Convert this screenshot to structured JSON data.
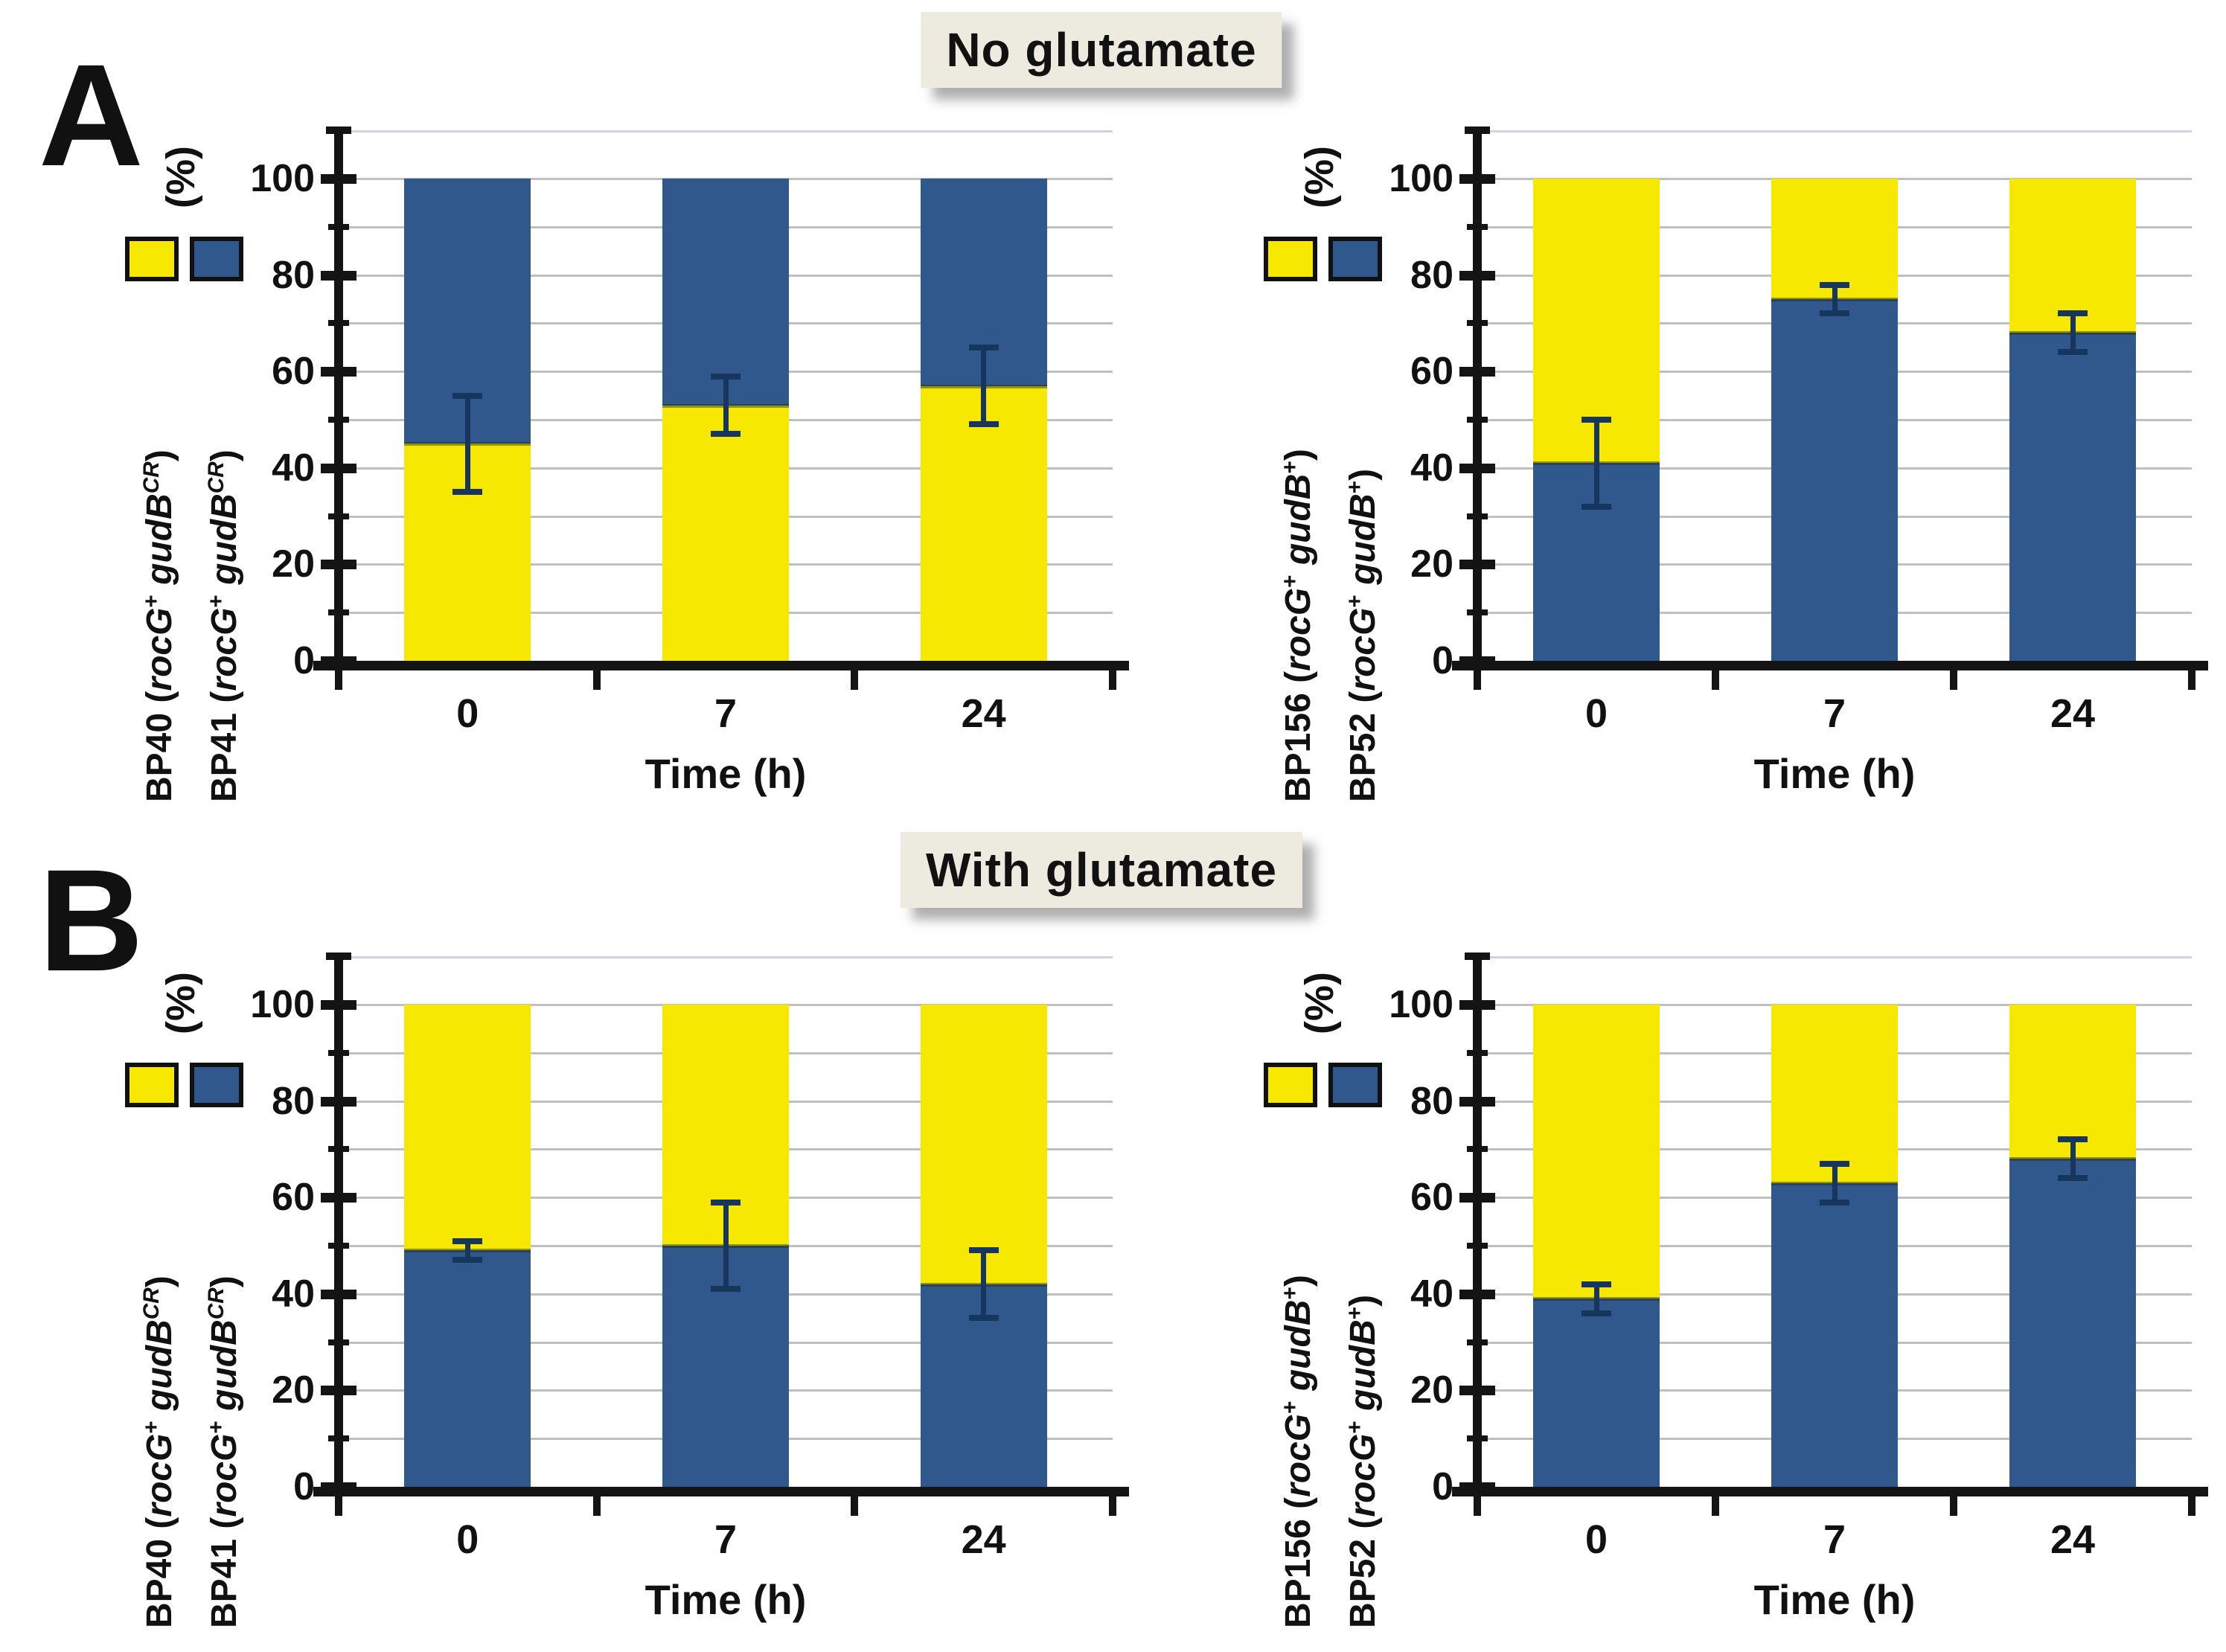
{
  "figure": {
    "panels": [
      {
        "letter": "A",
        "title": "No glutamate"
      },
      {
        "letter": "B",
        "title": "With glutamate"
      }
    ]
  },
  "style": {
    "yellow": "#F6E800",
    "blue": "#31588C",
    "error_bar": "#17365D",
    "grid": "#C0C0C0",
    "axis": "#141414",
    "title_bg": "#EDEBE0",
    "plot_top_border": "#CBD6E2"
  },
  "chart_data": [
    {
      "type": "bar",
      "stacked": true,
      "panel": "A",
      "side": "left",
      "panel_title": "No glutamate",
      "categories": [
        "0",
        "7",
        "24"
      ],
      "xlabel": "Time (h)",
      "ylabel": "(%)",
      "ylim": [
        0,
        100
      ],
      "yticks": [
        0,
        20,
        40,
        60,
        80,
        100
      ],
      "grid_step": 10,
      "series": [
        {
          "name": "BP40 (rocG+ gudBCR)",
          "color": "yellow",
          "stack": "bottom",
          "values": [
            45,
            53,
            57
          ]
        },
        {
          "name": "BP41 (rocG+ gudBCR)",
          "color": "blue",
          "stack": "top",
          "values": [
            55,
            47,
            43
          ]
        }
      ],
      "error_bars": {
        "at": "stack-boundary",
        "center": [
          45,
          53,
          57
        ],
        "plus_minus": [
          10,
          6,
          8
        ]
      },
      "legend": [
        {
          "color": "yellow",
          "parts": [
            {
              "t": "BP40 ("
            },
            {
              "t": "rocG",
              "s": "i"
            },
            {
              "t": "+",
              "s": "sup"
            },
            {
              "t": " "
            },
            {
              "t": "gudB",
              "s": "i"
            },
            {
              "t": "CR",
              "s": "isup"
            },
            {
              "t": ")"
            }
          ]
        },
        {
          "color": "blue",
          "parts": [
            {
              "t": "BP41 ("
            },
            {
              "t": "rocG",
              "s": "i"
            },
            {
              "t": "+",
              "s": "sup"
            },
            {
              "t": " "
            },
            {
              "t": "gudB",
              "s": "i"
            },
            {
              "t": "CR",
              "s": "isup"
            },
            {
              "t": ")"
            }
          ]
        }
      ]
    },
    {
      "type": "bar",
      "stacked": true,
      "panel": "A",
      "side": "right",
      "panel_title": "No glutamate",
      "categories": [
        "0",
        "7",
        "24"
      ],
      "xlabel": "Time (h)",
      "ylabel": "(%)",
      "ylim": [
        0,
        100
      ],
      "yticks": [
        0,
        20,
        40,
        60,
        80,
        100
      ],
      "grid_step": 10,
      "series": [
        {
          "name": "BP52 (rocG+ gudB+)",
          "color": "blue",
          "stack": "bottom",
          "values": [
            41,
            75,
            68
          ]
        },
        {
          "name": "BP156 (rocG+ gudB+)",
          "color": "yellow",
          "stack": "top",
          "values": [
            59,
            25,
            32
          ]
        }
      ],
      "error_bars": {
        "at": "stack-boundary",
        "center": [
          41,
          75,
          68
        ],
        "plus_minus": [
          9,
          3,
          4
        ]
      },
      "legend": [
        {
          "color": "yellow",
          "parts": [
            {
              "t": "BP156 ("
            },
            {
              "t": "rocG",
              "s": "i"
            },
            {
              "t": "+",
              "s": "sup"
            },
            {
              "t": " "
            },
            {
              "t": "gudB",
              "s": "i"
            },
            {
              "t": "+",
              "s": "sup"
            },
            {
              "t": ")"
            }
          ]
        },
        {
          "color": "blue",
          "parts": [
            {
              "t": "BP52 ("
            },
            {
              "t": "rocG",
              "s": "i"
            },
            {
              "t": "+",
              "s": "sup"
            },
            {
              "t": " "
            },
            {
              "t": "gudB",
              "s": "i"
            },
            {
              "t": "+",
              "s": "sup"
            },
            {
              "t": ")"
            }
          ]
        }
      ]
    },
    {
      "type": "bar",
      "stacked": true,
      "panel": "B",
      "side": "left",
      "panel_title": "With glutamate",
      "categories": [
        "0",
        "7",
        "24"
      ],
      "xlabel": "Time (h)",
      "ylabel": "(%)",
      "ylim": [
        0,
        100
      ],
      "yticks": [
        0,
        20,
        40,
        60,
        80,
        100
      ],
      "grid_step": 10,
      "series": [
        {
          "name": "BP41 (rocG+ gudBCR)",
          "color": "blue",
          "stack": "bottom",
          "values": [
            49,
            50,
            42
          ]
        },
        {
          "name": "BP40 (rocG+ gudBCR)",
          "color": "yellow",
          "stack": "top",
          "values": [
            51,
            50,
            58
          ]
        }
      ],
      "error_bars": {
        "at": "stack-boundary",
        "center": [
          49,
          50,
          42
        ],
        "plus_minus": [
          2,
          9,
          7
        ]
      },
      "legend": [
        {
          "color": "yellow",
          "parts": [
            {
              "t": "BP40 ("
            },
            {
              "t": "rocG",
              "s": "i"
            },
            {
              "t": "+",
              "s": "sup"
            },
            {
              "t": " "
            },
            {
              "t": "gudB",
              "s": "i"
            },
            {
              "t": "CR",
              "s": "isup"
            },
            {
              "t": ")"
            }
          ]
        },
        {
          "color": "blue",
          "parts": [
            {
              "t": "BP41 ("
            },
            {
              "t": "rocG",
              "s": "i"
            },
            {
              "t": "+",
              "s": "sup"
            },
            {
              "t": " "
            },
            {
              "t": "gudB",
              "s": "i"
            },
            {
              "t": "CR",
              "s": "isup"
            },
            {
              "t": ")"
            }
          ]
        }
      ]
    },
    {
      "type": "bar",
      "stacked": true,
      "panel": "B",
      "side": "right",
      "panel_title": "With glutamate",
      "categories": [
        "0",
        "7",
        "24"
      ],
      "xlabel": "Time (h)",
      "ylabel": "(%)",
      "ylim": [
        0,
        100
      ],
      "yticks": [
        0,
        20,
        40,
        60,
        80,
        100
      ],
      "grid_step": 10,
      "series": [
        {
          "name": "BP52 (rocG+ gudB+)",
          "color": "blue",
          "stack": "bottom",
          "values": [
            39,
            63,
            68
          ]
        },
        {
          "name": "BP156 (rocG+ gudB+)",
          "color": "yellow",
          "stack": "top",
          "values": [
            61,
            37,
            32
          ]
        }
      ],
      "error_bars": {
        "at": "stack-boundary",
        "center": [
          39,
          63,
          68
        ],
        "plus_minus": [
          3,
          4,
          4
        ]
      },
      "legend": [
        {
          "color": "yellow",
          "parts": [
            {
              "t": "BP156 ("
            },
            {
              "t": "rocG",
              "s": "i"
            },
            {
              "t": "+",
              "s": "sup"
            },
            {
              "t": " "
            },
            {
              "t": "gudB",
              "s": "i"
            },
            {
              "t": "+",
              "s": "sup"
            },
            {
              "t": ")"
            }
          ]
        },
        {
          "color": "blue",
          "parts": [
            {
              "t": "BP52 ("
            },
            {
              "t": "rocG",
              "s": "i"
            },
            {
              "t": "+",
              "s": "sup"
            },
            {
              "t": " "
            },
            {
              "t": "gudB",
              "s": "i"
            },
            {
              "t": "+",
              "s": "sup"
            },
            {
              "t": ")"
            }
          ]
        }
      ]
    }
  ]
}
